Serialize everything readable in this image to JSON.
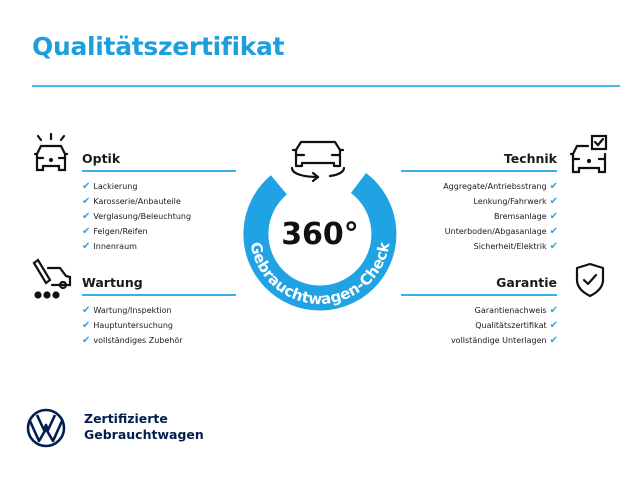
{
  "title": "Qualitätszertifikat",
  "brand_color": "#1d9fdc",
  "center": {
    "big": "360°",
    "ring_text": "Gebrauchtwagen-Check",
    "icon": "car-rotate-icon"
  },
  "sections": {
    "optik": {
      "heading": "Optik",
      "icon": "car-lights-icon",
      "items": [
        "Lackierung",
        "Karosserie/Anbauteile",
        "Verglasung/Beleuchtung",
        "Felgen/Reifen",
        "Innenraum"
      ]
    },
    "wartung": {
      "heading": "Wartung",
      "icon": "service-tools-icon",
      "items": [
        "Wartung/Inspektion",
        "Hauptuntersuchung",
        "vollständiges Zubehör"
      ]
    },
    "technik": {
      "heading": "Technik",
      "icon": "car-checklist-icon",
      "items": [
        "Aggregate/Antriebsstrang",
        "Lenkung/Fahrwerk",
        "Bremsanlage",
        "Unterboden/Abgasanlage",
        "Sicherheit/Elektrik"
      ]
    },
    "garantie": {
      "heading": "Garantie",
      "icon": "shield-check-icon",
      "items": [
        "Garantienachweis",
        "Qualitätszertifikat",
        "vollständige Unterlagen"
      ]
    }
  },
  "check_mark": "✔",
  "footer": {
    "line1": "Zertifizierte",
    "line2": "Gebrauchtwagen",
    "logo": "vw-logo"
  }
}
